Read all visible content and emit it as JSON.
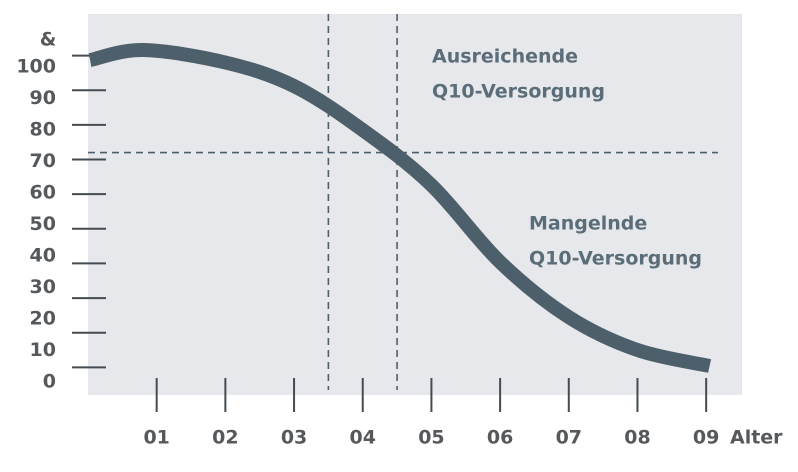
{
  "chart_data": {
    "type": "line",
    "y_label": "&",
    "x_label": "Alter",
    "xlim": [
      0,
      9.5
    ],
    "ylim": [
      0,
      112
    ],
    "xticks": [
      {
        "value": 1,
        "label": "01"
      },
      {
        "value": 2,
        "label": "02"
      },
      {
        "value": 3,
        "label": "03"
      },
      {
        "value": 4,
        "label": "04"
      },
      {
        "value": 5,
        "label": "05"
      },
      {
        "value": 6,
        "label": "06"
      },
      {
        "value": 7,
        "label": "07"
      },
      {
        "value": 8,
        "label": "08"
      },
      {
        "value": 9,
        "label": "09"
      }
    ],
    "yticks": [
      0,
      10,
      20,
      30,
      40,
      50,
      60,
      70,
      80,
      90,
      100
    ],
    "x": [
      0.03,
      0.8,
      2,
      3,
      4,
      5,
      6,
      7,
      8,
      9.05
    ],
    "series": [
      {
        "color": "#4d5f6a",
        "values": [
          98.7,
          101.6,
          98,
          91.2,
          78.5,
          62.6,
          40.4,
          24.5,
          15,
          10.4
        ]
      }
    ],
    "reference_lines": {
      "x": [
        3.5,
        4.5
      ],
      "y": [
        72
      ]
    },
    "annotations": [
      {
        "lines": [
          "Ausreichende",
          "Q10-Versorgung"
        ]
      },
      {
        "lines": [
          "Mangelnde",
          "Q10-Versorgung"
        ]
      }
    ]
  }
}
